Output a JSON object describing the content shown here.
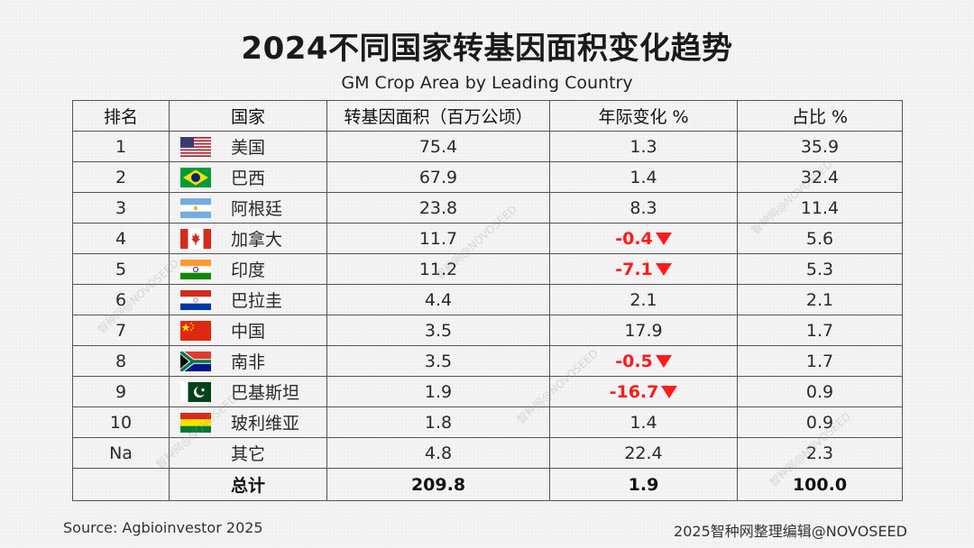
{
  "chart_data": {
    "type": "table",
    "title": "2024不同国家转基因面积变化趋势",
    "subtitle": "GM Crop Area by Leading Country",
    "columns": [
      "排名",
      "国家",
      "转基因面积（百万公顷）",
      "年际变化 %",
      "占比 %"
    ],
    "rows": [
      {
        "rank": "1",
        "country": "美国",
        "flag": "us-flag-icon",
        "area": "75.4",
        "change": "1.3",
        "negative": false,
        "share": "35.9"
      },
      {
        "rank": "2",
        "country": "巴西",
        "flag": "brazil-flag-icon",
        "area": "67.9",
        "change": "1.4",
        "negative": false,
        "share": "32.4"
      },
      {
        "rank": "3",
        "country": "阿根廷",
        "flag": "argentina-flag-icon",
        "area": "23.8",
        "change": "8.3",
        "negative": false,
        "share": "11.4"
      },
      {
        "rank": "4",
        "country": "加拿大",
        "flag": "canada-flag-icon",
        "area": "11.7",
        "change": "-0.4",
        "negative": true,
        "share": "5.6"
      },
      {
        "rank": "5",
        "country": "印度",
        "flag": "india-flag-icon",
        "area": "11.2",
        "change": "-7.1",
        "negative": true,
        "share": "5.3"
      },
      {
        "rank": "6",
        "country": "巴拉圭",
        "flag": "paraguay-flag-icon",
        "area": "4.4",
        "change": "2.1",
        "negative": false,
        "share": "2.1"
      },
      {
        "rank": "7",
        "country": "中国",
        "flag": "china-flag-icon",
        "area": "3.5",
        "change": "17.9",
        "negative": false,
        "share": "1.7"
      },
      {
        "rank": "8",
        "country": "南非",
        "flag": "south-africa-flag-icon",
        "area": "3.5",
        "change": "-0.5",
        "negative": true,
        "share": "1.7"
      },
      {
        "rank": "9",
        "country": "巴基斯坦",
        "flag": "pakistan-flag-icon",
        "area": "1.9",
        "change": "-16.7",
        "negative": true,
        "share": "0.9"
      },
      {
        "rank": "10",
        "country": "玻利维亚",
        "flag": "bolivia-flag-icon",
        "area": "1.8",
        "change": "1.4",
        "negative": false,
        "share": "0.9"
      },
      {
        "rank": "Na",
        "country": "其它",
        "flag": "",
        "area": "4.8",
        "change": "22.4",
        "negative": false,
        "share": "2.3"
      }
    ],
    "total": {
      "label": "总计",
      "area": "209.8",
      "change": "1.9",
      "share": "100.0"
    },
    "negative_color": "#ff1a1a"
  },
  "footer": {
    "source": "Source: Agbioinvestor 2025",
    "credit": "2025智种网整理编辑@NOVOSEED"
  },
  "watermark": {
    "text": "智种网@NOVOSEED"
  }
}
